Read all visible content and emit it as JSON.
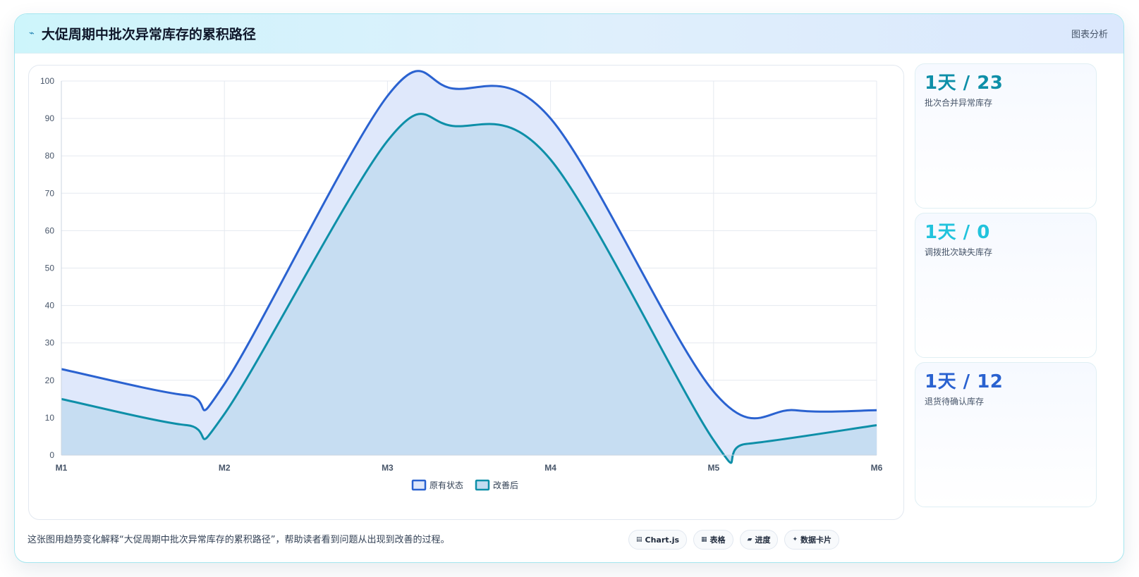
{
  "header": {
    "icon": "bolt-icon",
    "title": "大促周期中批次异常库存的累积路径",
    "tag": "图表分析"
  },
  "kpis": [
    {
      "value": "1天 / 23",
      "label": "批次合并异常库存",
      "color": "#0e8fa8"
    },
    {
      "value": "1天 / 0",
      "label": "调拨批次缺失库存",
      "color": "#22c3dc"
    },
    {
      "value": "1天 / 12",
      "label": "退货待确认库存",
      "color": "#2a62d0"
    }
  ],
  "footer": {
    "description": "这张图用趋势变化解释“大促周期中批次异常库存的累积路径”，帮助读者看到问题从出现到改善的过程。",
    "chips": [
      {
        "icon": "chart-icon",
        "glyph": "▤",
        "label": "Chart.js"
      },
      {
        "icon": "table-icon",
        "glyph": "▦",
        "label": "表格"
      },
      {
        "icon": "progress-icon",
        "glyph": "▰",
        "label": "进度"
      },
      {
        "icon": "card-icon",
        "glyph": "✦",
        "label": "数据卡片"
      }
    ]
  },
  "chart_data": {
    "type": "area",
    "categories": [
      "M1",
      "M2",
      "M3",
      "M4",
      "M5",
      "M6"
    ],
    "ylim": [
      0,
      100
    ],
    "yticks": [
      "0",
      "10",
      "20",
      "30",
      "40",
      "50",
      "60",
      "70",
      "80",
      "90",
      "100"
    ],
    "grid": true,
    "legend": "bottom",
    "series": [
      {
        "name": "原有状态",
        "x": [
          0,
          0.77,
          1,
          2,
          2.4,
          3,
          4,
          4.5,
          5
        ],
        "values": [
          23,
          16,
          19,
          96,
          98,
          90,
          17,
          12,
          12
        ],
        "color": "#2a62d0",
        "fill": "#dfe8fb"
      },
      {
        "name": "改善后",
        "x": [
          0,
          0.77,
          1,
          2,
          2.4,
          3,
          4,
          4.2,
          5
        ],
        "values": [
          15,
          8,
          11,
          84,
          88,
          79,
          4,
          3,
          8
        ],
        "color": "#0e8fa8",
        "fill": "#c3dcf1"
      }
    ]
  }
}
